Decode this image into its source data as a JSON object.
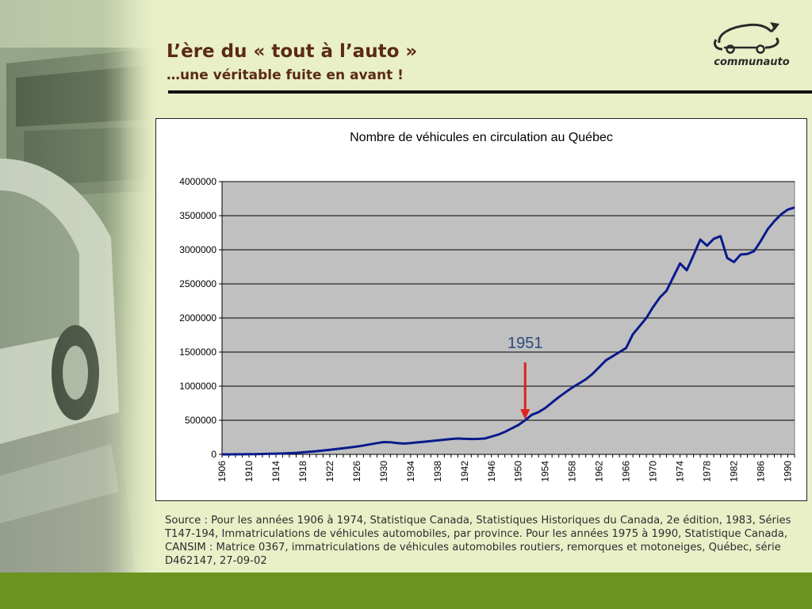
{
  "slide": {
    "title": "L’ère du « tout à l’auto »",
    "subtitle": "…une véritable fuite en avant !",
    "logo_text": "communauto",
    "source": "Source : Pour les années 1906 à 1974, Statistique Canada, Statistiques Historiques du Canada, 2e édition, 1983, Séries T147-194, Immatriculations de véhicules automobiles, par province. Pour les années 1975 à 1990, Statistique Canada, CANSIM : Matrice 0367, immatriculations de véhicules automobiles routiers, remorques et motoneiges, Québec, série D462147, 27-09-02"
  },
  "colors": {
    "background": "#e9f0c8",
    "title": "#5b2a14",
    "line": "#0a1a8c",
    "plot_area": "#c0c0c0",
    "arrow": "#e02020",
    "annotation": "#2e4a80",
    "footer": "#6b9320"
  },
  "chart_data": {
    "type": "line",
    "title": "Nombre de véhicules en circulation au Québec",
    "xlabel": "",
    "ylabel": "",
    "ylim": [
      0,
      4000000
    ],
    "y_ticks": [
      0,
      500000,
      1000000,
      1500000,
      2000000,
      2500000,
      3000000,
      3500000,
      4000000
    ],
    "x_tick_labels": [
      1906,
      1910,
      1914,
      1918,
      1922,
      1926,
      1930,
      1934,
      1938,
      1942,
      1946,
      1950,
      1954,
      1958,
      1962,
      1966,
      1970,
      1974,
      1978,
      1982,
      1986,
      1990
    ],
    "grid": true,
    "legend": "none",
    "annotation": {
      "label": "1951",
      "x": 1951
    },
    "series": [
      {
        "x": [
          1906,
          1907,
          1908,
          1909,
          1910,
          1911,
          1912,
          1913,
          1914,
          1915,
          1916,
          1917,
          1918,
          1919,
          1920,
          1921,
          1922,
          1923,
          1924,
          1925,
          1926,
          1927,
          1928,
          1929,
          1930,
          1931,
          1932,
          1933,
          1934,
          1935,
          1936,
          1937,
          1938,
          1939,
          1940,
          1941,
          1942,
          1943,
          1944,
          1945,
          1946,
          1947,
          1948,
          1949,
          1950,
          1951,
          1952,
          1953,
          1954,
          1955,
          1956,
          1957,
          1958,
          1959,
          1960,
          1961,
          1962,
          1963,
          1964,
          1965,
          1966,
          1967,
          1968,
          1969,
          1970,
          1971,
          1972,
          1973,
          1974,
          1975,
          1976,
          1977,
          1978,
          1979,
          1980,
          1981,
          1982,
          1983,
          1984,
          1985,
          1986,
          1987,
          1988,
          1989,
          1990,
          1991
        ],
        "values": [
          200,
          400,
          800,
          1200,
          2000,
          3500,
          5500,
          8000,
          10000,
          13000,
          17000,
          22000,
          30000,
          38000,
          47000,
          57000,
          67000,
          78000,
          90000,
          102000,
          115000,
          130000,
          148000,
          165000,
          180000,
          178000,
          165000,
          158000,
          165000,
          175000,
          185000,
          195000,
          205000,
          215000,
          225000,
          232000,
          228000,
          225000,
          227000,
          232000,
          260000,
          290000,
          330000,
          380000,
          430000,
          500000,
          580000,
          620000,
          680000,
          760000,
          840000,
          910000,
          980000,
          1040000,
          1100000,
          1180000,
          1280000,
          1380000,
          1440000,
          1500000,
          1560000,
          1760000,
          1880000,
          2000000,
          2160000,
          2300000,
          2400000,
          2600000,
          2800000,
          2700000,
          2920000,
          3150000,
          3060000,
          3160000,
          3200000,
          2880000,
          2820000,
          2930000,
          2940000,
          2980000,
          3130000,
          3300000,
          3420000,
          3520000,
          3590000,
          3620000
        ]
      }
    ]
  }
}
